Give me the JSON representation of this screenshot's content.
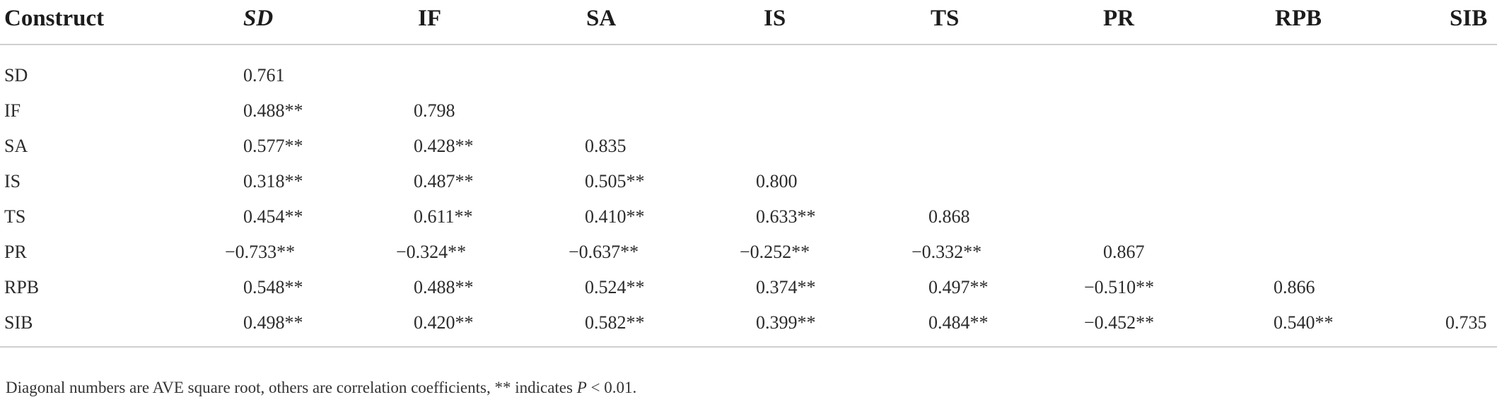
{
  "table": {
    "columns": [
      "Construct",
      "SD",
      "IF",
      "SA",
      "IS",
      "TS",
      "PR",
      "RPB",
      "SIB"
    ],
    "rows": [
      {
        "label": "SD",
        "values": [
          "0.761",
          "",
          "",
          "",
          "",
          "",
          "",
          ""
        ]
      },
      {
        "label": "IF",
        "values": [
          "0.488**",
          "0.798",
          "",
          "",
          "",
          "",
          "",
          ""
        ]
      },
      {
        "label": "SA",
        "values": [
          "0.577**",
          "0.428**",
          "0.835",
          "",
          "",
          "",
          "",
          ""
        ]
      },
      {
        "label": "IS",
        "values": [
          "0.318**",
          "0.487**",
          "0.505**",
          "0.800",
          "",
          "",
          "",
          ""
        ]
      },
      {
        "label": "TS",
        "values": [
          "0.454**",
          "0.611**",
          "0.410**",
          "0.633**",
          "0.868",
          "",
          "",
          ""
        ]
      },
      {
        "label": "PR",
        "values": [
          "−0.733**",
          "−0.324**",
          "−0.637**",
          "−0.252**",
          "−0.332**",
          "0.867",
          "",
          ""
        ]
      },
      {
        "label": "RPB",
        "values": [
          "0.548**",
          "0.488**",
          "0.524**",
          "0.374**",
          "0.497**",
          "−0.510**",
          "0.866",
          ""
        ]
      },
      {
        "label": "SIB",
        "values": [
          "0.498**",
          "0.420**",
          "0.582**",
          "0.399**",
          "0.484**",
          "−0.452**",
          "0.540**",
          "0.735"
        ]
      }
    ]
  },
  "footnote": {
    "pre": "Diagonal numbers are AVE square root, others are correlation coefficients, ** indicates ",
    "p": "P",
    "post": " < 0.01."
  }
}
